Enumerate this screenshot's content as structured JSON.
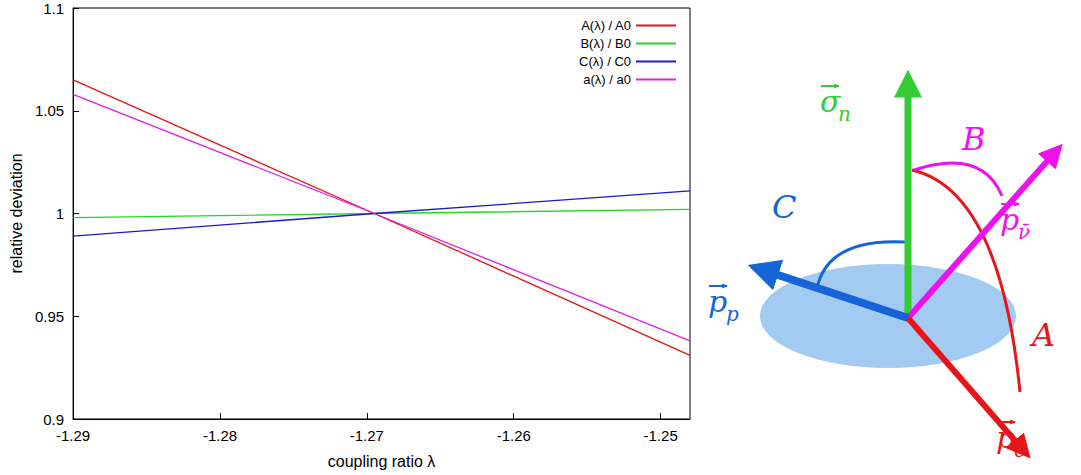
{
  "chart_data": {
    "type": "line",
    "x_label": "coupling ratio λ",
    "y_label": "relative deviation",
    "x": [
      -1.29,
      -1.2695,
      -1.248
    ],
    "series": [
      {
        "name": "A(λ) / A0",
        "color": "#e8141a",
        "values": [
          1.065,
          1.0,
          0.931
        ]
      },
      {
        "name": "B(λ) / B0",
        "color": "#22d822",
        "values": [
          0.998,
          1.0,
          1.002
        ]
      },
      {
        "name": "C(λ) / C0",
        "color": "#1a1acc",
        "values": [
          0.989,
          1.0,
          1.011
        ]
      },
      {
        "name": "a(λ) / a0",
        "color": "#e020e0",
        "values": [
          1.058,
          1.0,
          0.938
        ]
      }
    ],
    "xlim": [
      -1.29,
      -1.248
    ],
    "xticks": [
      -1.29,
      -1.28,
      -1.27,
      -1.26,
      -1.25
    ],
    "ylim": [
      0.9,
      1.1
    ],
    "yticks": [
      0.9,
      0.95,
      1,
      1.05,
      1.1
    ],
    "grid": false,
    "legend": "upper right"
  },
  "diagram": {
    "plane_color": "#a3cbf2",
    "vectors": [
      {
        "base": "σ",
        "sub": "n",
        "color": "#33cc33"
      },
      {
        "base": "p",
        "sub": "ν̄",
        "color": "#ee11ee"
      },
      {
        "base": "p",
        "sub": "p",
        "color": "#1565d8"
      },
      {
        "base": "p",
        "sub": "e",
        "color": "#e8141a"
      }
    ],
    "angles": [
      {
        "label": "A",
        "color": "#e8141a"
      },
      {
        "label": "B",
        "color": "#ee11ee"
      },
      {
        "label": "C",
        "color": "#1565d8"
      }
    ]
  }
}
